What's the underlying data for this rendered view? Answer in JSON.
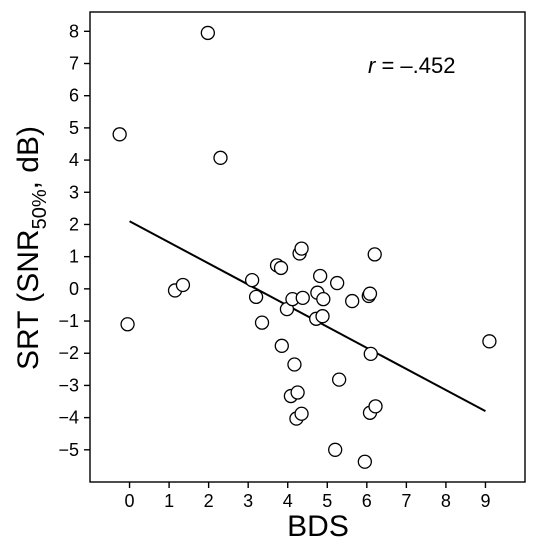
{
  "chart_data": {
    "type": "scatter",
    "xlabel": "BDS",
    "ylabel": {
      "prefix": "SRT (SNR",
      "subscript": "50%",
      "suffix": ", dB)"
    },
    "annotation": {
      "r_symbol": "r",
      "value_text": " = –.452"
    },
    "xlim": [
      -1,
      10
    ],
    "ylim": [
      -6,
      8.6
    ],
    "x_ticks": [
      0,
      1,
      2,
      3,
      4,
      5,
      6,
      7,
      8,
      9
    ],
    "x_tick_labels": [
      "0",
      "1",
      "2",
      "3",
      "4",
      "5",
      "6",
      "7",
      "8",
      "9"
    ],
    "y_ticks": [
      8,
      7,
      6,
      5,
      4,
      3,
      2,
      1,
      0,
      -1,
      -2,
      -3,
      -4,
      -5
    ],
    "y_tick_labels": [
      "8",
      "7",
      "6",
      "5",
      "4",
      "3",
      "2",
      "1",
      "0",
      "−1",
      "−2",
      "−3",
      "−4",
      "−5"
    ],
    "regression_line": {
      "x": [
        0,
        9
      ],
      "y": [
        2.1,
        -3.8
      ]
    },
    "points": [
      {
        "x": -0.25,
        "y": 4.8
      },
      {
        "x": -0.05,
        "y": -1.1
      },
      {
        "x": 1.15,
        "y": -0.05
      },
      {
        "x": 1.35,
        "y": 0.12
      },
      {
        "x": 1.98,
        "y": 7.95
      },
      {
        "x": 2.3,
        "y": 4.07
      },
      {
        "x": 3.1,
        "y": 0.27
      },
      {
        "x": 3.2,
        "y": -0.25
      },
      {
        "x": 3.35,
        "y": -1.05
      },
      {
        "x": 3.73,
        "y": 0.73
      },
      {
        "x": 3.83,
        "y": 0.65
      },
      {
        "x": 3.85,
        "y": -1.77
      },
      {
        "x": 3.98,
        "y": -0.63
      },
      {
        "x": 4.08,
        "y": -3.33
      },
      {
        "x": 4.12,
        "y": -0.32
      },
      {
        "x": 4.17,
        "y": -2.35
      },
      {
        "x": 4.22,
        "y": -4.03
      },
      {
        "x": 4.25,
        "y": -3.22
      },
      {
        "x": 4.3,
        "y": 1.1
      },
      {
        "x": 4.35,
        "y": 1.25
      },
      {
        "x": 4.35,
        "y": -3.88
      },
      {
        "x": 4.38,
        "y": -0.28
      },
      {
        "x": 4.72,
        "y": -0.93
      },
      {
        "x": 4.75,
        "y": -0.12
      },
      {
        "x": 4.82,
        "y": 0.4
      },
      {
        "x": 4.88,
        "y": -0.85
      },
      {
        "x": 4.9,
        "y": -0.32
      },
      {
        "x": 5.2,
        "y": -5.0
      },
      {
        "x": 5.25,
        "y": 0.18
      },
      {
        "x": 5.3,
        "y": -2.82
      },
      {
        "x": 5.63,
        "y": -0.38
      },
      {
        "x": 5.95,
        "y": -5.37
      },
      {
        "x": 6.05,
        "y": -0.22
      },
      {
        "x": 6.08,
        "y": -0.15
      },
      {
        "x": 6.08,
        "y": -3.85
      },
      {
        "x": 6.1,
        "y": -2.02
      },
      {
        "x": 6.2,
        "y": 1.07
      },
      {
        "x": 6.22,
        "y": -3.65
      },
      {
        "x": 9.1,
        "y": -1.63
      }
    ]
  }
}
